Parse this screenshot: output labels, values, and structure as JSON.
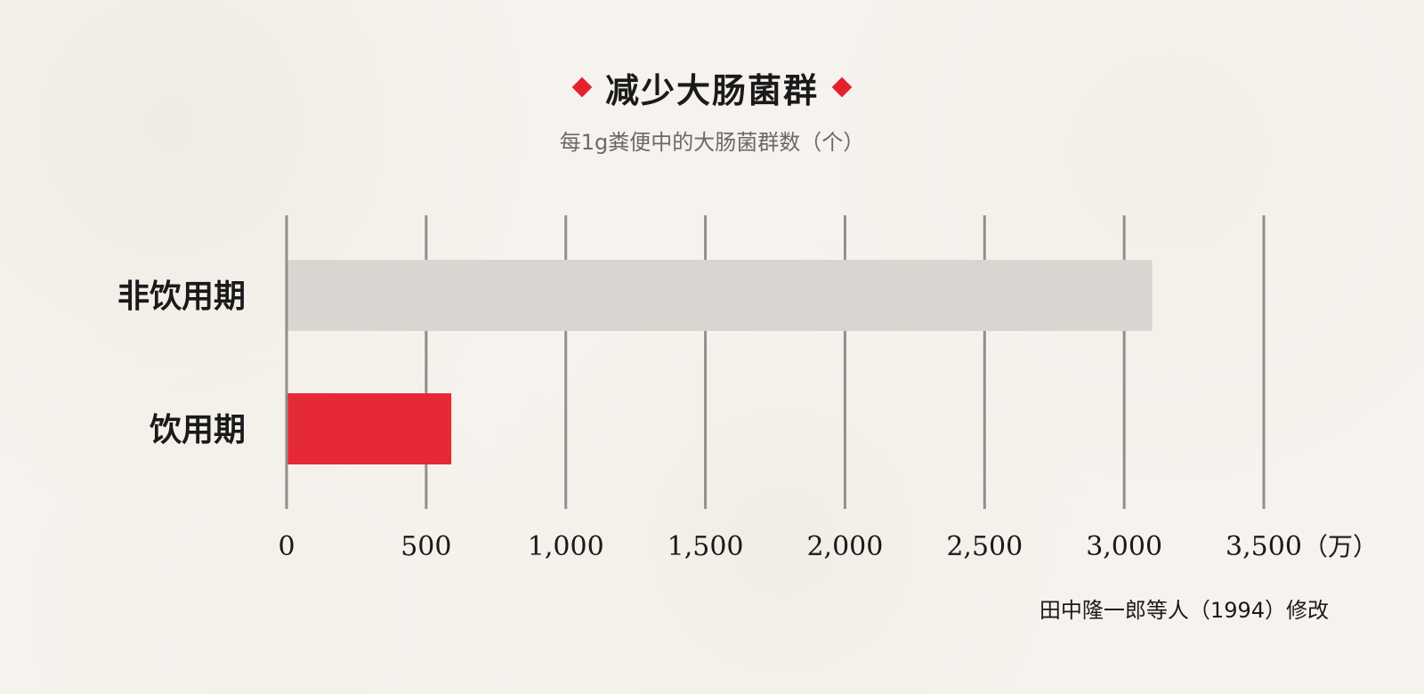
{
  "title": "减少大肠菌群",
  "subtitle": "每1g粪便中的大肠菌群数（个）",
  "source": "田中隆一郎等人（1994）修改",
  "colors": {
    "accent": "#e3202c",
    "bar_before": "#d9d6d1",
    "bar_after": "#e62a35",
    "grid": "#8f8f8f",
    "background": "#f6f3ee"
  },
  "chart_data": {
    "type": "bar",
    "orientation": "horizontal",
    "title": "减少大肠菌群",
    "subtitle": "每1g粪便中的大肠菌群数（个）",
    "categories": [
      "非饮用期",
      "饮用期"
    ],
    "values": [
      3100,
      590
    ],
    "xlim": [
      0,
      3500
    ],
    "xticks": [
      "0",
      "500",
      "1,000",
      "1,500",
      "2,000",
      "2,500",
      "3,000",
      "3,500"
    ],
    "tick_values": [
      0,
      500,
      1000,
      1500,
      2000,
      2500,
      3000,
      3500
    ],
    "unit": "（万）",
    "grid": true,
    "bar_colors": [
      "#d9d6d1",
      "#e62a35"
    ]
  }
}
